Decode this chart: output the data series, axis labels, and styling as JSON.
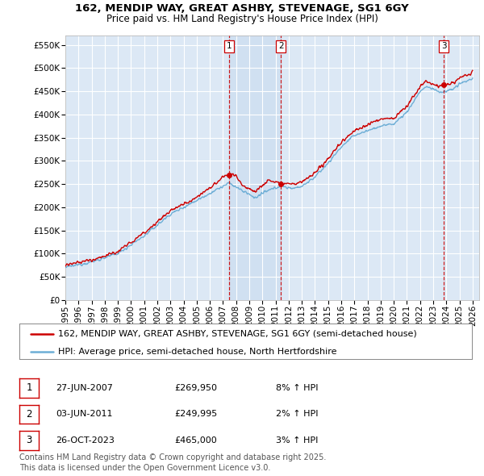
{
  "title": "162, MENDIP WAY, GREAT ASHBY, STEVENAGE, SG1 6GY",
  "subtitle": "Price paid vs. HM Land Registry's House Price Index (HPI)",
  "ylabel_ticks": [
    "£0",
    "£50K",
    "£100K",
    "£150K",
    "£200K",
    "£250K",
    "£300K",
    "£350K",
    "£400K",
    "£450K",
    "£500K",
    "£550K"
  ],
  "ytick_values": [
    0,
    50000,
    100000,
    150000,
    200000,
    250000,
    300000,
    350000,
    400000,
    450000,
    500000,
    550000
  ],
  "ylim": [
    0,
    570000
  ],
  "xlim_start": 1995.0,
  "xlim_end": 2026.5,
  "plot_bg_color": "#dce8f5",
  "grid_color": "#ffffff",
  "hpi_line_color": "#6daed6",
  "price_line_color": "#cc0000",
  "sale_marker_color": "#cc0000",
  "vline_color": "#cc0000",
  "shade_color": "#ccddf0",
  "sales": [
    {
      "label": "1",
      "date": 2007.49,
      "price": 269950,
      "text": "27-JUN-2007",
      "amount": "£269,950",
      "pct": "8% ↑ HPI"
    },
    {
      "label": "2",
      "date": 2011.42,
      "price": 249995,
      "text": "03-JUN-2011",
      "amount": "£249,995",
      "pct": "2% ↑ HPI"
    },
    {
      "label": "3",
      "date": 2023.82,
      "price": 465000,
      "text": "26-OCT-2023",
      "amount": "£465,000",
      "pct": "3% ↑ HPI"
    }
  ],
  "legend_line1": "162, MENDIP WAY, GREAT ASHBY, STEVENAGE, SG1 6GY (semi-detached house)",
  "legend_line2": "HPI: Average price, semi-detached house, North Hertfordshire",
  "footnote": "Contains HM Land Registry data © Crown copyright and database right 2025.\nThis data is licensed under the Open Government Licence v3.0.",
  "title_fontsize": 9.5,
  "subtitle_fontsize": 8.5,
  "tick_fontsize": 7.5,
  "legend_fontsize": 8,
  "table_fontsize": 8,
  "footnote_fontsize": 7
}
